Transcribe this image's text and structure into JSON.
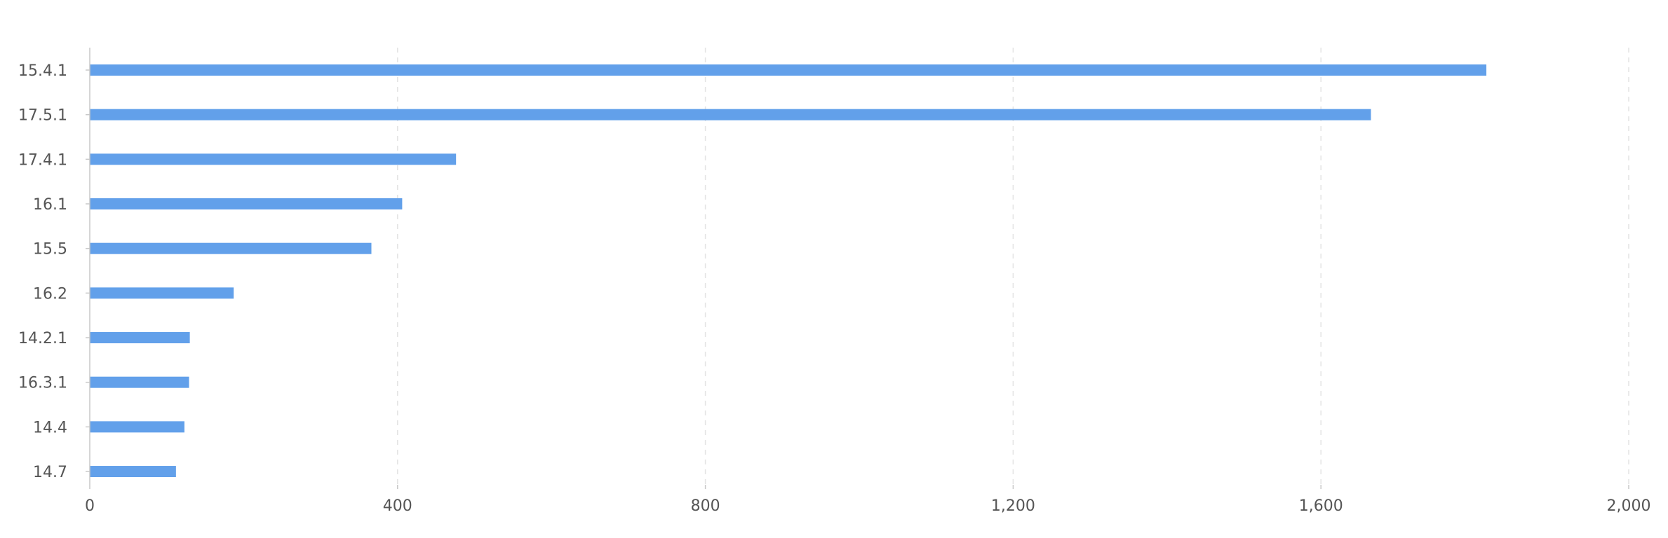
{
  "chart_data": {
    "type": "bar",
    "orientation": "horizontal",
    "title": "",
    "xlabel": "",
    "ylabel": "",
    "categories": [
      "15.4.1",
      "17.5.1",
      "17.4.1",
      "16.1",
      "15.5",
      "16.2",
      "14.2.1",
      "16.3.1",
      "14.4",
      "14.7"
    ],
    "values": [
      1815,
      1665,
      476,
      406,
      366,
      187,
      130,
      129,
      123,
      112
    ],
    "xlim": [
      0,
      2000
    ],
    "xticks": [
      0,
      400,
      800,
      1200,
      1600,
      2000
    ],
    "xtick_labels": [
      "0",
      "400",
      "800",
      "1,200",
      "1,600",
      "2,000"
    ],
    "grid": "vertical-dashed",
    "legend": "none",
    "colors": {
      "bar": "#62a0ea",
      "grid": "#e3e3e3",
      "axis": "#c8c8c8",
      "text": "#555555"
    }
  }
}
